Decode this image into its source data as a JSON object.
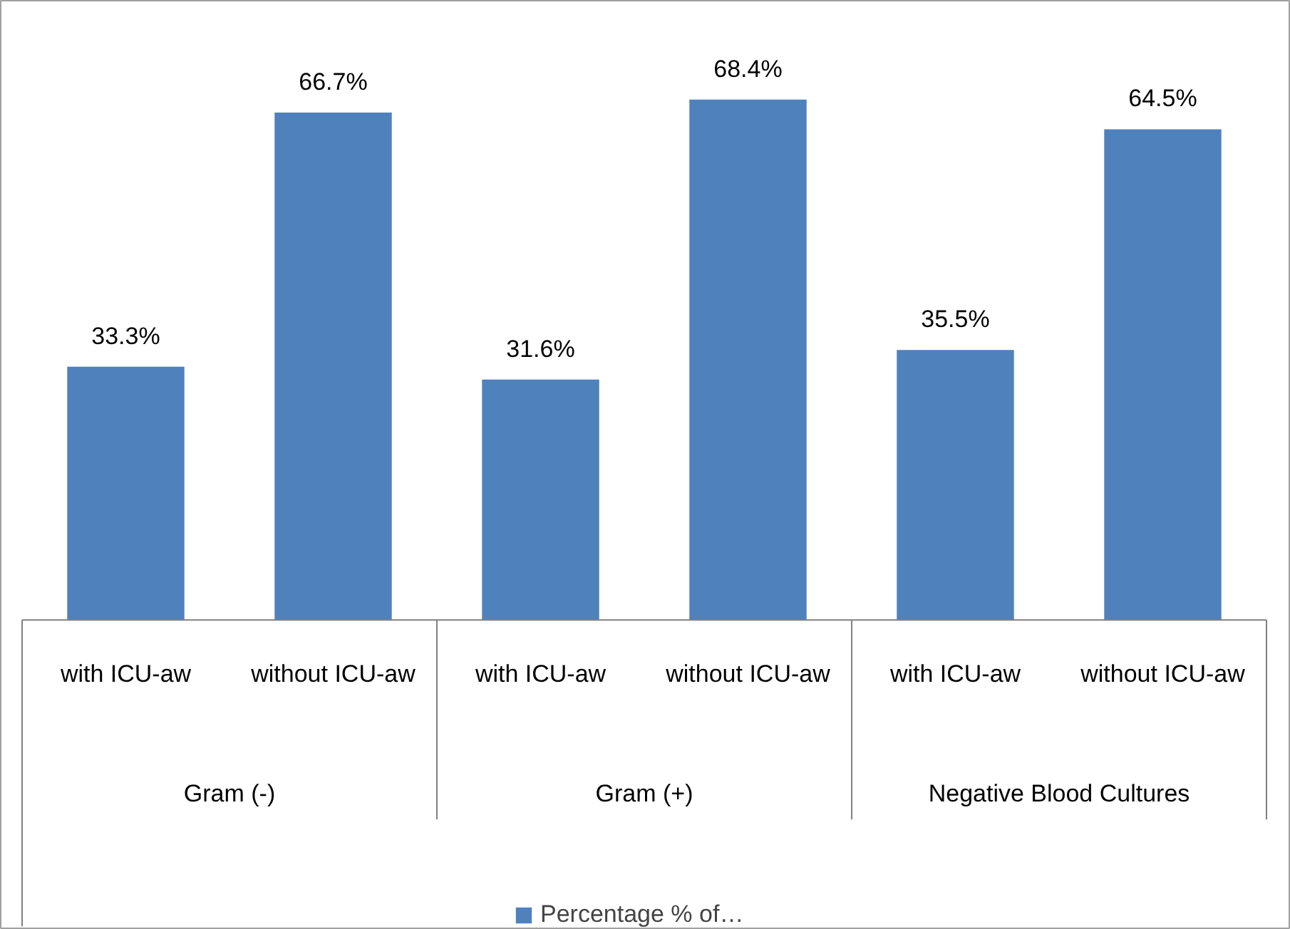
{
  "chart_data": {
    "type": "bar",
    "categories": [
      "with ICU-aw",
      "without ICU-aw",
      "with ICU-aw",
      "without ICU-aw",
      "with ICU-aw",
      "without ICU-aw"
    ],
    "annotations": [
      "Gram (-)",
      "Gram (+)",
      "Negative Blood Cultures"
    ],
    "series": [
      {
        "name": "Percentage % of…",
        "color": "#4f81bd",
        "values": [
          33.3,
          66.7,
          31.6,
          68.4,
          35.5,
          64.5
        ],
        "value_labels": [
          "33.3%",
          "66.7%",
          "31.6%",
          "68.4%",
          "35.5%",
          "64.5%"
        ]
      }
    ],
    "legend": "bottom"
  }
}
